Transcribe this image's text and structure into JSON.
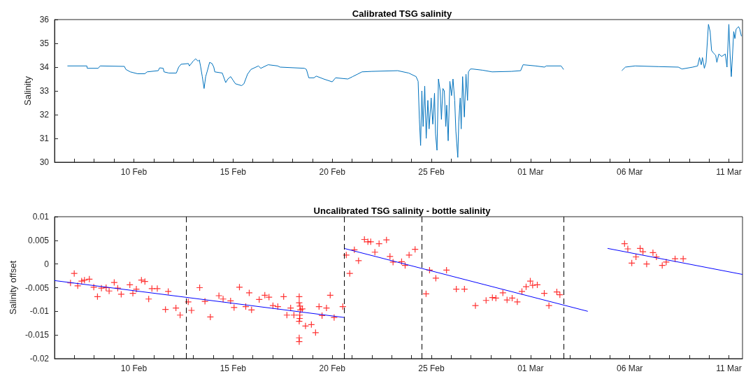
{
  "chart_data": [
    {
      "type": "line",
      "title": "Calibrated TSG salinity",
      "ylabel": "Salinity",
      "color": "#0072bd",
      "marker": "none",
      "x": [
        "--02-06T15:36",
        "--02-07T15:07",
        "--02-07T15:36",
        "--02-08T04:48",
        "--02-08T07:12",
        "--02-09T12:29",
        "--02-09T14:24",
        "--02-09T19:41",
        "--02-10T04:34",
        "--02-10T13:12",
        "--02-10T16:05",
        "--02-11T05:31",
        "--02-11T07:12",
        "--02-11T11:31",
        "--02-11T12:29",
        "--02-11T18:29",
        "--02-12T03:22",
        "--02-12T06:14",
        "--02-12T09:07",
        "--02-12T18:00",
        "--02-12T19:12",
        "--02-12T23:46",
        "--02-13T02:38",
        "--02-13T05:46",
        "--02-13T07:12",
        "--02-13T08:38",
        "--02-13T10:48",
        "--02-13T12:58",
        "--02-13T14:53",
        "--02-13T16:34",
        "--02-13T19:41",
        "--02-13T22:34",
        "--02-14T00:43",
        "--02-14T01:55",
        "--02-14T11:02",
        "--02-14T12:00",
        "--02-14T15:07",
        "--02-14T17:46",
        "--02-14T21:07",
        "--02-15T00:00",
        "--02-15T02:53",
        "--02-15T10:19",
        "--02-15T13:12",
        "--02-15T17:31",
        "--02-15T21:36",
        "--02-16T06:43",
        "--02-16T09:36",
        "--02-16T18:29",
        "--02-17T06:00",
        "--02-17T08:53",
        "--02-18T14:24",
        "--02-18T16:48",
        "--02-18T19:41",
        "--02-19T01:55",
        "--02-19T04:48",
        "--02-19T13:41",
        "--02-20T00:00",
        "--02-20T04:05",
        "--02-20T18:58",
        "--02-21T00:43",
        "--02-21T06:29",
        "--02-21T12:00",
        "--02-22T00:00",
        "--02-23T07:12",
        "--02-23T20:38",
        "--02-24T05:31",
        "--02-24T08:00",
        "--02-24T09:30",
        "--02-24T11:00",
        "--02-24T12:30",
        "--02-24T14:00",
        "--02-24T16:00",
        "--02-24T17:45",
        "--02-24T19:45",
        "--02-24T21:15",
        "--02-24T23:45",
        "--02-25T01:45",
        "--02-25T03:50",
        "--02-25T05:00",
        "--02-25T06:50",
        "--02-25T08:35",
        "--02-25T10:40",
        "--02-25T12:10",
        "--02-25T13:55",
        "--02-25T15:40",
        "--02-25T17:25",
        "--02-25T18:35",
        "--02-25T20:20",
        "--02-25T22:25",
        "--02-26T00:25",
        "--02-26T02:10",
        "--02-26T04:15",
        "--02-26T05:40",
        "--02-26T08:00",
        "--02-26T09:10",
        "--02-26T10:55",
        "--02-26T12:05",
        "--02-26T13:50",
        "--02-26T15:55",
        "--02-26T17:55",
        "--02-26T19:45",
        "--02-26T20:50",
        "--02-26T23:15",
        "--02-27T02:00",
        "--02-27T14:00",
        "--02-28T01:30",
        "--02-29T01:00",
        "--02-29T12:00",
        "--02-29T15:00",
        "--03-01T06:00",
        "--03-01T17:00",
        "--03-01T19:00",
        "--03-02T13:00",
        "--03-02T16:00",
        "--03-04T00:00",
        "--03-05T14:25",
        "--03-05T18:47",
        "--03-06T06:26",
        "--03-07T11:34",
        "--03-08T10:52",
        "--03-08T15:14",
        "--03-09T04:21",
        "--03-09T10:11",
        "--03-09T12:30",
        "--03-09T14:33",
        "--03-09T16:00",
        "--03-09T18:20",
        "--03-09T20:23",
        "--03-09T23:17",
        "--03-10T01:19",
        "--03-10T03:04",
        "--03-10T05:07",
        "--03-10T08:01",
        "--03-10T09:29",
        "--03-10T11:49",
        "--03-10T15:18",
        "--03-10T19:41",
        "--03-10T21:43",
        "--03-11T00:00",
        "--03-11T01:30",
        "--03-11T02:57",
        "--03-11T04:25",
        "--03-11T05:53",
        "--03-11T07:20",
        "--03-11T08:47",
        "--03-11T11:43",
        "--03-11T13:09",
        "--03-11T15:12"
      ],
      "values": [
        34.05,
        34.05,
        33.95,
        33.95,
        34.05,
        34.03,
        33.9,
        33.8,
        33.72,
        33.72,
        33.8,
        33.85,
        33.97,
        33.95,
        33.8,
        33.75,
        33.75,
        34.0,
        34.12,
        34.15,
        34.05,
        34.25,
        34.35,
        34.25,
        34.3,
        34.05,
        33.6,
        33.1,
        33.6,
        33.8,
        34.2,
        34.15,
        34.0,
        33.8,
        33.75,
        33.65,
        33.35,
        33.5,
        33.6,
        33.45,
        33.3,
        33.22,
        33.3,
        33.7,
        33.9,
        34.05,
        33.95,
        34.1,
        34.05,
        34.0,
        33.95,
        33.9,
        33.55,
        33.55,
        33.62,
        33.5,
        33.38,
        33.55,
        33.5,
        33.6,
        33.7,
        33.8,
        33.82,
        33.85,
        33.75,
        33.6,
        33.4,
        31.8,
        30.7,
        33.0,
        31.5,
        33.2,
        31.0,
        32.6,
        31.4,
        32.7,
        31.6,
        32.9,
        31.2,
        30.5,
        33.5,
        33.0,
        31.8,
        33.1,
        33.0,
        31.5,
        32.4,
        30.9,
        33.4,
        32.8,
        33.5,
        32.6,
        31.3,
        30.2,
        31.7,
        32.7,
        31.4,
        33.6,
        31.9,
        33.7,
        32.6,
        33.8,
        33.92,
        33.92,
        33.87,
        33.8,
        33.82,
        33.85,
        34.1,
        34.05,
        34.0,
        34.05,
        34.05,
        33.9,
        null,
        33.85,
        34.0,
        34.05,
        34.02,
        34.0,
        33.92,
        34.0,
        34.05,
        34.4,
        34.1,
        34.4,
        33.95,
        34.2,
        35.8,
        35.5,
        34.7,
        34.6,
        34.5,
        34.2,
        34.55,
        34.45,
        34.55,
        34.0,
        35.8,
        34.5,
        33.6,
        34.5,
        35.5,
        35.2,
        35.6,
        35.7,
        35.6,
        35.3
      ],
      "xlim": [
        "--02-06",
        "--03-11T16:30"
      ],
      "xticks": [
        {
          "value": "--02-07",
          "label": null
        },
        {
          "value": "--02-08",
          "label": null
        },
        {
          "value": "--02-09",
          "label": null
        },
        {
          "value": "--02-10",
          "label": "10 Feb"
        },
        {
          "value": "--02-11",
          "label": null
        },
        {
          "value": "--02-12",
          "label": null
        },
        {
          "value": "--02-13",
          "label": null
        },
        {
          "value": "--02-14",
          "label": null
        },
        {
          "value": "--02-15",
          "label": "15 Feb"
        },
        {
          "value": "--02-16",
          "label": null
        },
        {
          "value": "--02-17",
          "label": null
        },
        {
          "value": "--02-18",
          "label": null
        },
        {
          "value": "--02-19",
          "label": null
        },
        {
          "value": "--02-20",
          "label": "20 Feb"
        },
        {
          "value": "--02-21",
          "label": null
        },
        {
          "value": "--02-22",
          "label": null
        },
        {
          "value": "--02-23",
          "label": null
        },
        {
          "value": "--02-24",
          "label": null
        },
        {
          "value": "--02-25",
          "label": "25 Feb"
        },
        {
          "value": "--02-26",
          "label": null
        },
        {
          "value": "--02-27",
          "label": null
        },
        {
          "value": "--02-28",
          "label": null
        },
        {
          "value": "--02-29",
          "label": null
        },
        {
          "value": "--03-01",
          "label": "01 Mar"
        },
        {
          "value": "--03-02",
          "label": null
        },
        {
          "value": "--03-03",
          "label": null
        },
        {
          "value": "--03-04",
          "label": null
        },
        {
          "value": "--03-05",
          "label": null
        },
        {
          "value": "--03-06",
          "label": "06 Mar"
        },
        {
          "value": "--03-07",
          "label": null
        },
        {
          "value": "--03-08",
          "label": null
        },
        {
          "value": "--03-09",
          "label": null
        },
        {
          "value": "--03-10",
          "label": null
        },
        {
          "value": "--03-11",
          "label": "11 Mar"
        }
      ],
      "ylim": [
        30,
        36
      ],
      "yticks": [
        30,
        31,
        32,
        33,
        34,
        35,
        36
      ]
    },
    {
      "type": "scatter",
      "title": "Uncalibrated TSG salinity - bottle salinity",
      "ylabel": "Salinity offset",
      "marker": "cross",
      "series": [
        {
          "color": "#ff0000",
          "x": [
            "--02-06T19:19",
            "--02-06T23:50",
            "--02-07T04:03",
            "--02-07T08:50",
            "--02-07T12:13",
            "--02-07T18:07",
            "--02-07T23:28",
            "--02-08T03:58",
            "--02-08T08:45",
            "--02-08T14:24",
            "--02-08T18:04",
            "--02-09T00:14",
            "--02-09T04:28",
            "--02-09T08:41",
            "--02-09T19:08",
            "--02-09T22:47",
            "--02-10T03:00",
            "--02-10T09:10",
            "--02-10T13:23",
            "--02-10T17:57",
            "--02-10T21:50",
            "--02-11T04:21",
            "--02-11T14:14",
            "--02-11T17:37",
            "--02-12T02:54",
            "--02-12T07:58",
            "--02-12T17:47",
            "--02-12T21:45",
            "--02-13T07:38",
            "--02-13T14:02",
            "--02-13T20:33",
            "--02-14T06:56",
            "--02-14T12:00",
            "--02-14T21:02",
            "--02-15T01:16",
            "--02-15T07:46",
            "--02-15T15:23",
            "--02-15T19:36",
            "--02-15T22:24",
            "--02-16T07:41",
            "--02-16T14:27",
            "--02-16T19:31",
            "--02-17T00:19",
            "--02-17T06:13",
            "--02-17T13:15",
            "--02-17T17:12",
            "--02-17T21:42",
            "--02-18T01:41",
            "--02-18T08:05",
            "--02-18T08:05",
            "--02-18T08:57",
            "--02-18T09:32",
            "--02-18T11:48",
            "--02-18T08:41",
            "--02-18T08:41",
            "--02-18T08:05",
            "--02-18T08:05",
            "--02-18T08:05",
            "--02-18T15:42",
            "--02-18T22:48",
            "--02-19T03:52",
            "--02-19T08:05",
            "--02-19T11:43",
            "--02-19T17:04",
            "--02-19T21:36",
            "--02-20T02:21",
            "--02-20T12:48",
            "--02-20T17:01",
            "--02-20T21:14",
            "--02-21T02:50",
            "--02-21T07:54",
            "--02-21T15:00",
            "--02-21T19:13",
            "--02-21T22:36",
            "--02-22T03:40",
            "--02-22T08:44",
            "--02-22T17:41",
            "--02-22T21:55",
            "--02-23T01:38",
            "--02-23T12:00",
            "--02-23T16:15",
            "--02-23T21:03",
            "--02-24T04:19",
            "--02-24T17:35",
            "--02-24T21:49",
            "--02-25T05:25",
            "--02-25T18:20",
            "--02-26T06:10",
            "--02-26T16:03",
            "--02-27T05:18",
            "--02-27T18:14",
            "--02-28T01:51",
            "--02-28T06:04",
            "--02-28T14:31",
            "--02-28T19:35",
            "--02-29T01:45",
            "--02-29T07:59",
            "--02-29T13:35",
            "--02-29T18:39",
            "--02-29T23:43",
            "--03-01T02:34",
            "--03-01T08:11",
            "--03-01T16:38",
            "--03-01T22:16",
            "--03-02T07:49",
            "--03-02T11:31",
            "--03-05T17:46",
            "--03-05T21:43",
            "--03-06T02:31",
            "--03-06T07:35",
            "--03-06T12:38",
            "--03-06T16:02",
            "--03-06T20:31",
            "--03-07T04:08",
            "--03-07T08:21",
            "--03-07T15:22",
            "--03-07T20:11",
            "--03-08T06:55",
            "--03-08T16:44"
          ],
          "values": [
            -0.004,
            -0.002,
            -0.0046,
            -0.0036,
            -0.0034,
            -0.0032,
            -0.0049,
            -0.0069,
            -0.0051,
            -0.005,
            -0.0057,
            -0.0039,
            -0.0051,
            -0.0064,
            -0.0044,
            -0.0062,
            -0.0053,
            -0.0034,
            -0.0037,
            -0.0074,
            -0.0052,
            -0.0052,
            -0.0096,
            -0.0058,
            -0.0093,
            -0.0108,
            -0.008,
            -0.0098,
            -0.005,
            -0.0079,
            -0.0112,
            -0.0067,
            -0.0074,
            -0.0078,
            -0.0092,
            -0.0049,
            -0.009,
            -0.0061,
            -0.0097,
            -0.0075,
            -0.0066,
            -0.007,
            -0.0088,
            -0.009,
            -0.0069,
            -0.0108,
            -0.0093,
            -0.0108,
            -0.0069,
            -0.0082,
            -0.0089,
            -0.0097,
            -0.0095,
            -0.0108,
            -0.0115,
            -0.0121,
            -0.0156,
            -0.0164,
            -0.0131,
            -0.0128,
            -0.0145,
            -0.009,
            -0.0109,
            -0.0093,
            -0.0066,
            -0.0113,
            -0.009,
            0.0019,
            -0.002,
            0.003,
            0.0007,
            0.0052,
            0.0047,
            0.0047,
            0.0025,
            0.0043,
            0.0051,
            0.0016,
            0.0004,
            0.0005,
            -0.0003,
            0.0019,
            0.0031,
            -0.0063,
            -0.0013,
            -0.003,
            -0.0013,
            -0.0053,
            -0.0053,
            -0.0088,
            -0.0077,
            -0.0071,
            -0.0072,
            -0.0061,
            -0.0076,
            -0.0072,
            -0.008,
            -0.0058,
            -0.0048,
            -0.0036,
            -0.0045,
            -0.0044,
            -0.0062,
            -0.0088,
            -0.0059,
            -0.0065,
            0.0043,
            0.0032,
            0.0002,
            0.0015,
            0.0033,
            0.0026,
            0.0,
            0.0024,
            0.0015,
            -0.0003,
            0.0004,
            0.0011,
            0.0011
          ]
        },
        {
          "type": "line",
          "color": "#0000ff",
          "marker": "none",
          "x": [
            "--02-06",
            "--02-20T14:30"
          ],
          "values": [
            -0.0035,
            -0.0113
          ]
        },
        {
          "type": "line",
          "color": "#0000ff",
          "marker": "none",
          "x": [
            "--02-20T14:30",
            "--03-03T21:19"
          ],
          "values": [
            0.0033,
            -0.01
          ]
        },
        {
          "type": "line",
          "color": "#0000ff",
          "marker": "none",
          "x": [
            "--03-04T21:14",
            "--03-11T16:30"
          ],
          "values": [
            0.0033,
            -0.0022
          ]
        }
      ],
      "ref_lines": [
        {
          "axis": "x",
          "value": "--02-12T15:30",
          "color": "#000000",
          "line_style": "dashed"
        },
        {
          "axis": "x",
          "value": "--02-20T14:30",
          "color": "#000000",
          "line_style": "dashed"
        },
        {
          "axis": "x",
          "value": "--02-24T12:45",
          "color": "#000000",
          "line_style": "dashed"
        },
        {
          "axis": "x",
          "value": "--03-02T15:45",
          "color": "#000000",
          "line_style": "dashed"
        }
      ],
      "xlim": [
        "--02-06",
        "--03-11T16:30"
      ],
      "xticks": [
        {
          "value": "--02-07",
          "label": null
        },
        {
          "value": "--02-08",
          "label": null
        },
        {
          "value": "--02-09",
          "label": null
        },
        {
          "value": "--02-10",
          "label": "10 Feb"
        },
        {
          "value": "--02-11",
          "label": null
        },
        {
          "value": "--02-12",
          "label": null
        },
        {
          "value": "--02-13",
          "label": null
        },
        {
          "value": "--02-14",
          "label": null
        },
        {
          "value": "--02-15",
          "label": "15 Feb"
        },
        {
          "value": "--02-16",
          "label": null
        },
        {
          "value": "--02-17",
          "label": null
        },
        {
          "value": "--02-18",
          "label": null
        },
        {
          "value": "--02-19",
          "label": null
        },
        {
          "value": "--02-20",
          "label": "20 Feb"
        },
        {
          "value": "--02-21",
          "label": null
        },
        {
          "value": "--02-22",
          "label": null
        },
        {
          "value": "--02-23",
          "label": null
        },
        {
          "value": "--02-24",
          "label": null
        },
        {
          "value": "--02-25",
          "label": "25 Feb"
        },
        {
          "value": "--02-26",
          "label": null
        },
        {
          "value": "--02-27",
          "label": null
        },
        {
          "value": "--02-28",
          "label": null
        },
        {
          "value": "--02-29",
          "label": null
        },
        {
          "value": "--03-01",
          "label": "01 Mar"
        },
        {
          "value": "--03-02",
          "label": null
        },
        {
          "value": "--03-03",
          "label": null
        },
        {
          "value": "--03-04",
          "label": null
        },
        {
          "value": "--03-05",
          "label": null
        },
        {
          "value": "--03-06",
          "label": "06 Mar"
        },
        {
          "value": "--03-07",
          "label": null
        },
        {
          "value": "--03-08",
          "label": null
        },
        {
          "value": "--03-09",
          "label": null
        },
        {
          "value": "--03-10",
          "label": null
        },
        {
          "value": "--03-11",
          "label": "11 Mar"
        }
      ],
      "ylim": [
        -0.02,
        0.01
      ],
      "yticks": [
        -0.02,
        -0.015,
        -0.01,
        -0.005,
        0,
        0.005,
        0.01
      ]
    }
  ]
}
